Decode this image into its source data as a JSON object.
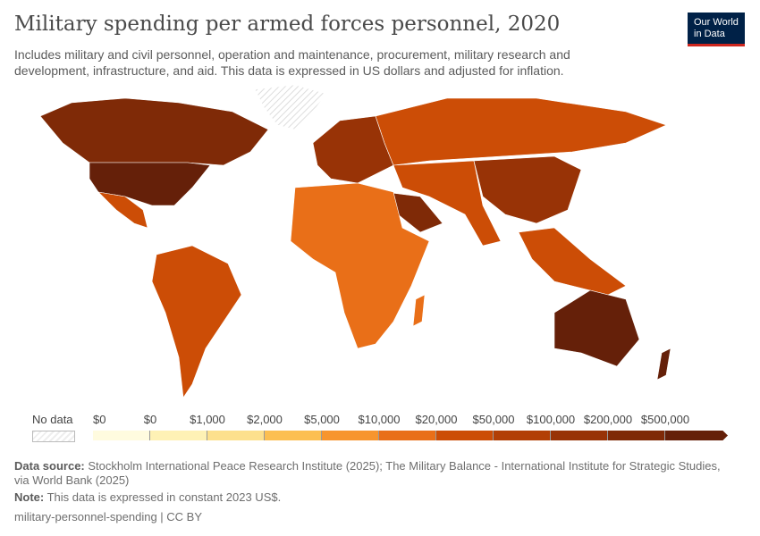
{
  "header": {
    "title": "Military spending per armed forces personnel, 2020",
    "subtitle": "Includes military and civil personnel, operation and maintenance, procurement, military research and development, infrastructure, and aid. This data is expressed in US dollars and adjusted for inflation.",
    "logo_line1": "Our World",
    "logo_line2": "in Data"
  },
  "legend": {
    "no_data_label": "No data",
    "labels": [
      "$0",
      "$0",
      "$1,000",
      "$2,000",
      "$5,000",
      "$10,000",
      "$20,000",
      "$50,000",
      "$100,000",
      "$200,000",
      "$500,000"
    ],
    "colors": [
      "#fffbdf",
      "#fef1b5",
      "#fde08d",
      "#fcbf51",
      "#f7952e",
      "#e96f18",
      "#cc4d06",
      "#b23f05",
      "#983306",
      "#7f2a07",
      "#652009"
    ]
  },
  "map_colors": {
    "north_america": "#7f2a07",
    "usa": "#652009",
    "mexico": "#cc4d06",
    "south_america": "#cc4d06",
    "europe": "#983306",
    "russia": "#cc4d06",
    "africa": "#e96f18",
    "middle_east": "#7f2a07",
    "asia": "#cc4d06",
    "china": "#983306",
    "australia": "#652009",
    "greenland": "no-data"
  },
  "footer": {
    "source_label": "Data source:",
    "source_text": "Stockholm International Peace Research Institute (2025); The Military Balance - International Institute for Strategic Studies, via World Bank (2025)",
    "note_label": "Note:",
    "note_text": "This data is expressed in constant 2023 US$.",
    "slug": "military-personnel-spending | CC BY"
  }
}
